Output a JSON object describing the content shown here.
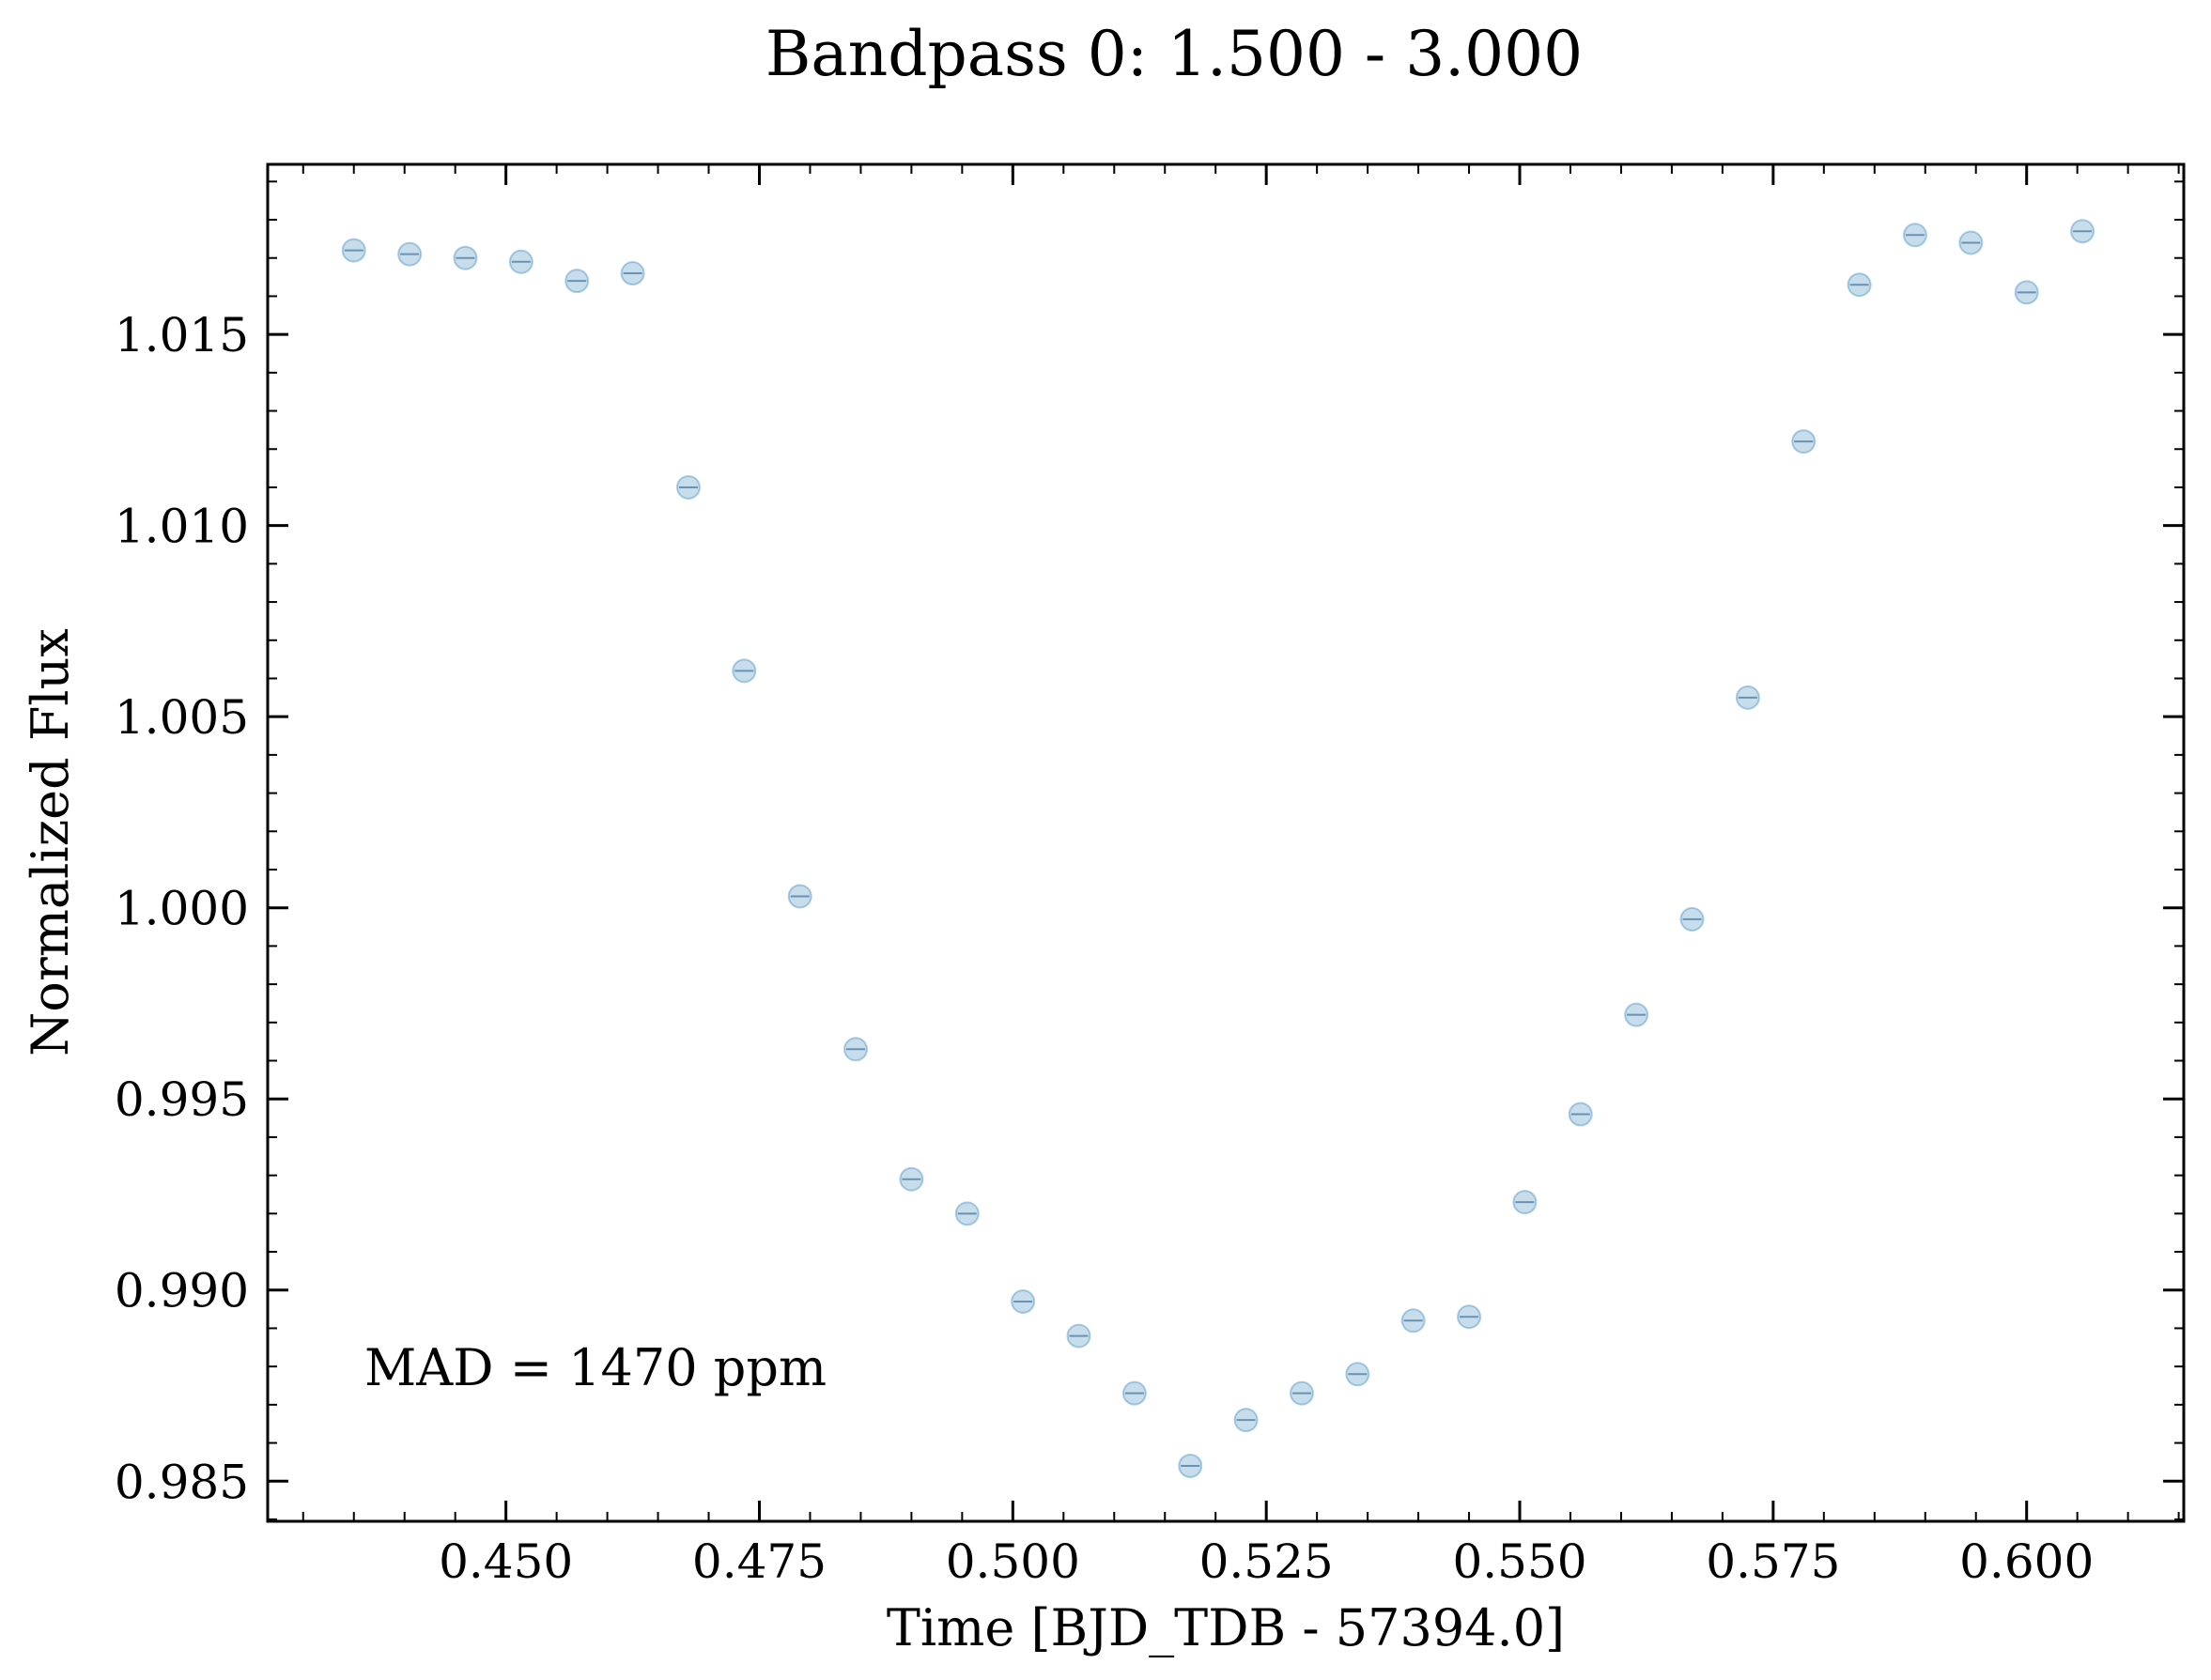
{
  "chart_data": {
    "type": "scatter",
    "title": "Bandpass 0: 1.500 - 3.000",
    "xlabel": "Time [BJD_TDB - 57394.0]",
    "ylabel": "Normalized Flux",
    "xlim": [
      0.4265,
      0.6155
    ],
    "ylim": [
      0.98395,
      1.01945
    ],
    "x_ticks": [
      0.45,
      0.475,
      0.5,
      0.525,
      0.55,
      0.575,
      0.6
    ],
    "x_tick_labels": [
      "0.450",
      "0.475",
      "0.500",
      "0.525",
      "0.550",
      "0.575",
      "0.600"
    ],
    "x_minor_step": 0.005,
    "y_ticks": [
      0.985,
      0.99,
      0.995,
      1.0,
      1.005,
      1.01,
      1.015
    ],
    "y_tick_labels": [
      "0.985",
      "0.990",
      "0.995",
      "1.000",
      "1.005",
      "1.010",
      "1.015"
    ],
    "y_minor_step": 0.001,
    "grid": false,
    "annotation": "MAD = 1470 ppm",
    "marker_color": "#1f77b4",
    "series": [
      {
        "x": [
          0.435,
          0.4405,
          0.446,
          0.4515,
          0.457,
          0.4625,
          0.468,
          0.4735,
          0.479,
          0.4845,
          0.49,
          0.4955,
          0.501,
          0.5065,
          0.512,
          0.5175,
          0.523,
          0.5285,
          0.534,
          0.5395,
          0.545,
          0.5505,
          0.556,
          0.5615,
          0.567,
          0.5725,
          0.578,
          0.5835,
          0.589,
          0.5945,
          0.6,
          0.6055
        ],
        "y": [
          1.0172,
          1.0171,
          1.017,
          1.0169,
          1.0164,
          1.0166,
          1.011,
          1.0062,
          1.0003,
          0.9963,
          0.9929,
          0.992,
          0.9897,
          0.9888,
          0.9873,
          0.9854,
          0.9866,
          0.9873,
          0.9878,
          0.9892,
          0.9893,
          0.9923,
          0.9946,
          0.9972,
          0.9997,
          1.0055,
          1.0122,
          1.0163,
          1.0176,
          1.0174,
          1.0161,
          1.0177
        ]
      }
    ]
  }
}
